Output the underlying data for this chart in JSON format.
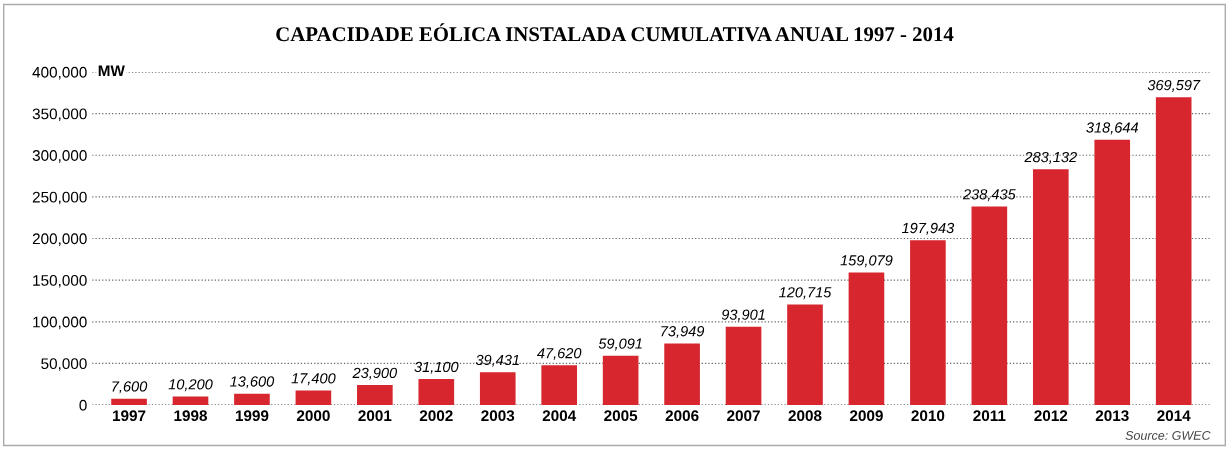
{
  "chart_data": {
    "type": "bar",
    "title": "CAPACIDADE EÓLICA INSTALADA CUMULATIVA ANUAL 1997 - 2014",
    "ylabel": "MW",
    "categories": [
      "1997",
      "1998",
      "1999",
      "2000",
      "2001",
      "2002",
      "2003",
      "2004",
      "2005",
      "2006",
      "2007",
      "2008",
      "2009",
      "2010",
      "2011",
      "2012",
      "2013",
      "2014"
    ],
    "values": [
      7600,
      10200,
      13600,
      17400,
      23900,
      31100,
      39431,
      47620,
      59091,
      73949,
      93901,
      120715,
      159079,
      197943,
      238435,
      283132,
      318644,
      369597
    ],
    "value_labels": [
      "7,600",
      "10,200",
      "13,600",
      "17,400",
      "23,900",
      "31,100",
      "39,431",
      "47,620",
      "59,091",
      "73,949",
      "93,901",
      "120,715",
      "159,079",
      "197,943",
      "238,435",
      "283,132",
      "318,644",
      "369,597"
    ],
    "color": "#d7262e",
    "ylim": [
      0,
      400000
    ],
    "yticks": [
      {
        "value": 0,
        "label": "0"
      },
      {
        "value": 50000,
        "label": "50,000"
      },
      {
        "value": 100000,
        "label": "100,000"
      },
      {
        "value": 150000,
        "label": "150,000"
      },
      {
        "value": 200000,
        "label": "200,000"
      },
      {
        "value": 250000,
        "label": "250,000"
      },
      {
        "value": 300000,
        "label": "300,000"
      },
      {
        "value": 350000,
        "label": "350,000"
      },
      {
        "value": 400000,
        "label": "400,000"
      }
    ],
    "grid": "y",
    "line_style": "dotted",
    "annotations": [
      "Source: GWEC"
    ]
  }
}
